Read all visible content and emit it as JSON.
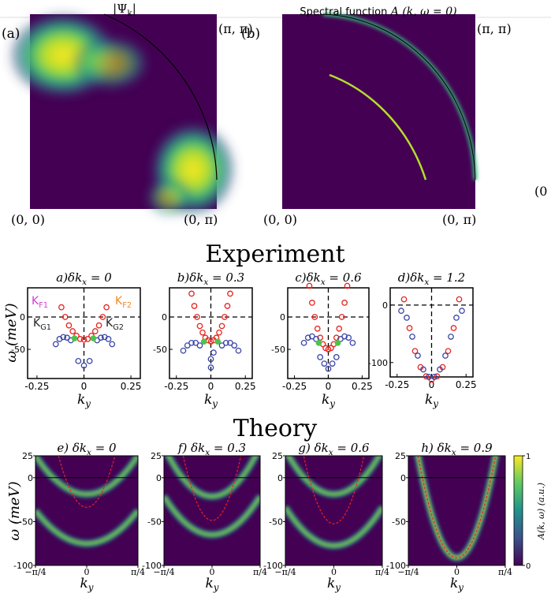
{
  "top_panels": [
    {
      "label": "(a)",
      "title": "|Ψ",
      "title_sub": "k",
      "title_end": "|",
      "corner_tr": "(π, π)",
      "corner_bl": "(0, 0)",
      "corner_br": "(0, π)"
    },
    {
      "label": "(b)",
      "title": "Spectral function",
      "title_end": " A (k, ω = 0)",
      "corner_tr": "(π, π)",
      "corner_bl": "(0, 0)",
      "corner_br": "(0, π)"
    }
  ],
  "cut_label": "(0",
  "experiment": {
    "heading": "Experiment",
    "ylabel": "ω (meV)",
    "xlabel": "k",
    "xlabel_sub": "y",
    "annotations": [
      {
        "text": "K",
        "sub": "F1",
        "color": "#d03fd0"
      },
      {
        "text": "K",
        "sub": "F2",
        "color": "#f08a24"
      },
      {
        "text": "K",
        "sub": "G1",
        "color": "#222222"
      },
      {
        "text": "K",
        "sub": "G2",
        "color": "#222222"
      }
    ],
    "panels": [
      {
        "title": "a)δk",
        "title_sub": "x",
        "title_end": " = 0",
        "xlim": [
          -0.3,
          0.3
        ],
        "ylim": [
          -95,
          45
        ],
        "xticks": [
          -0.25,
          0,
          0.25
        ],
        "yticks": [
          0,
          -50
        ],
        "series": [
          {
            "color": "#e8231f",
            "x": [
              -0.12,
              -0.1,
              -0.08,
              -0.06,
              -0.04,
              -0.02,
              0,
              0.02,
              0.04,
              0.06,
              0.08,
              0.1,
              0.12
            ],
            "y": [
              15,
              0,
              -13,
              -22,
              -29,
              -34,
              -35,
              -34,
              -29,
              -22,
              -13,
              0,
              15
            ]
          },
          {
            "color": "#3a45a8",
            "x": [
              -0.15,
              -0.13,
              -0.11,
              -0.09,
              -0.07,
              0.07,
              0.09,
              0.11,
              0.13,
              0.15,
              -0.03,
              0,
              0.03
            ],
            "y": [
              -42,
              -34,
              -31,
              -32,
              -36,
              -36,
              -32,
              -31,
              -34,
              -42,
              -68,
              -75,
              -68
            ]
          },
          {
            "color": "#4cc44c",
            "filled": true,
            "x": [
              -0.05,
              0.05
            ],
            "y": [
              -33,
              -33
            ]
          }
        ]
      },
      {
        "title": "b)δk",
        "title_sub": "x",
        "title_end": " = 0.3",
        "xlim": [
          -0.3,
          0.3
        ],
        "ylim": [
          -95,
          45
        ],
        "xticks": [
          -0.25,
          0,
          0.25
        ],
        "yticks": [
          0,
          -50
        ],
        "series": [
          {
            "color": "#e8231f",
            "x": [
              -0.14,
              -0.12,
              -0.1,
              -0.08,
              -0.06,
              -0.04,
              -0.02,
              0,
              0.02,
              0.04,
              0.06,
              0.08,
              0.1,
              0.12,
              0.14
            ],
            "y": [
              36,
              17,
              0,
              -14,
              -24,
              -32,
              -36,
              -38,
              -36,
              -32,
              -24,
              -14,
              0,
              17,
              36
            ]
          },
          {
            "color": "#3a45a8",
            "x": [
              -0.2,
              -0.17,
              -0.14,
              -0.11,
              -0.08,
              0.08,
              0.11,
              0.14,
              0.17,
              0.2,
              0,
              0,
              0.02
            ],
            "y": [
              -52,
              -44,
              -40,
              -40,
              -44,
              -44,
              -40,
              -40,
              -44,
              -52,
              -65,
              -78,
              -55
            ]
          },
          {
            "color": "#4cc44c",
            "filled": true,
            "x": [
              -0.05,
              0.05
            ],
            "y": [
              -38,
              -38
            ]
          }
        ]
      },
      {
        "title": "c)δk",
        "title_sub": "x",
        "title_end": " = 0.6",
        "xlim": [
          -0.3,
          0.3
        ],
        "ylim": [
          -95,
          45
        ],
        "xticks": [
          -0.25,
          0,
          0.25
        ],
        "yticks": [
          0,
          -50
        ],
        "series": [
          {
            "color": "#e8231f",
            "x": [
              -0.14,
              -0.12,
              -0.1,
              -0.08,
              -0.06,
              -0.04,
              -0.02,
              0,
              0.02,
              0.04,
              0.06,
              0.08,
              0.1,
              0.12,
              0.14
            ],
            "y": [
              48,
              22,
              0,
              -18,
              -32,
              -42,
              -48,
              -50,
              -48,
              -42,
              -32,
              -18,
              0,
              22,
              48
            ]
          },
          {
            "color": "#3a45a8",
            "x": [
              -0.18,
              -0.15,
              -0.12,
              -0.09,
              0.09,
              0.12,
              0.15,
              0.18,
              -0.06,
              -0.03,
              0,
              0.03,
              0.06
            ],
            "y": [
              -40,
              -32,
              -30,
              -34,
              -34,
              -30,
              -32,
              -40,
              -62,
              -72,
              -80,
              -72,
              -62
            ]
          },
          {
            "color": "#4cc44c",
            "filled": true,
            "x": [
              -0.07,
              0.07
            ],
            "y": [
              -40,
              -40
            ]
          }
        ]
      },
      {
        "title": "d)δk",
        "title_sub": "x",
        "title_end": " = 1.2",
        "xlim": [
          -0.3,
          0.3
        ],
        "ylim": [
          -125,
          30
        ],
        "xticks": [
          -0.25,
          0,
          0.25
        ],
        "yticks": [
          0,
          -100
        ],
        "series": [
          {
            "color": "#e8231f",
            "x": [
              -0.2,
              -0.16,
              -0.12,
              -0.08,
              -0.04,
              0,
              0.04,
              0.08,
              0.12,
              0.16,
              0.2
            ],
            "y": [
              10,
              -40,
              -80,
              -108,
              -124,
              -130,
              -124,
              -108,
              -80,
              -40,
              10
            ]
          },
          {
            "color": "#3a45a8",
            "x": [
              -0.22,
              -0.18,
              -0.14,
              -0.1,
              -0.06,
              -0.02,
              0.02,
              0.06,
              0.1,
              0.14,
              0.18,
              0.22
            ],
            "y": [
              -10,
              -22,
              -55,
              -88,
              -112,
              -125,
              -125,
              -112,
              -88,
              -55,
              -22,
              -10
            ]
          }
        ]
      }
    ]
  },
  "theory": {
    "heading": "Theory",
    "ylabel": "ω (meV)",
    "xlabel": "k",
    "xlabel_sub": "y",
    "panels": [
      {
        "title": "e)  δk",
        "title_sub": "x",
        "title_end": " = 0"
      },
      {
        "title": "f)  δk",
        "title_sub": "x",
        "title_end": " = 0.3"
      },
      {
        "title": "g)  δk",
        "title_sub": "x",
        "title_end": " = 0.6"
      },
      {
        "title": "h)  δk",
        "title_sub": "x",
        "title_end": " = 0.9"
      }
    ],
    "xlim": [
      -0.785398,
      0.785398
    ],
    "ylim": [
      -100,
      25
    ],
    "xticks": [
      {
        "value": -0.785398,
        "label": "−π/4"
      },
      0,
      {
        "value": 0.785398,
        "label": "π/4"
      }
    ],
    "yticks": [
      25,
      0,
      -50,
      -100
    ],
    "colorbar": {
      "label": "A(k, ω) (a.u.)",
      "clim": [
        0,
        1
      ],
      "ticks": [
        1,
        0
      ]
    }
  }
}
